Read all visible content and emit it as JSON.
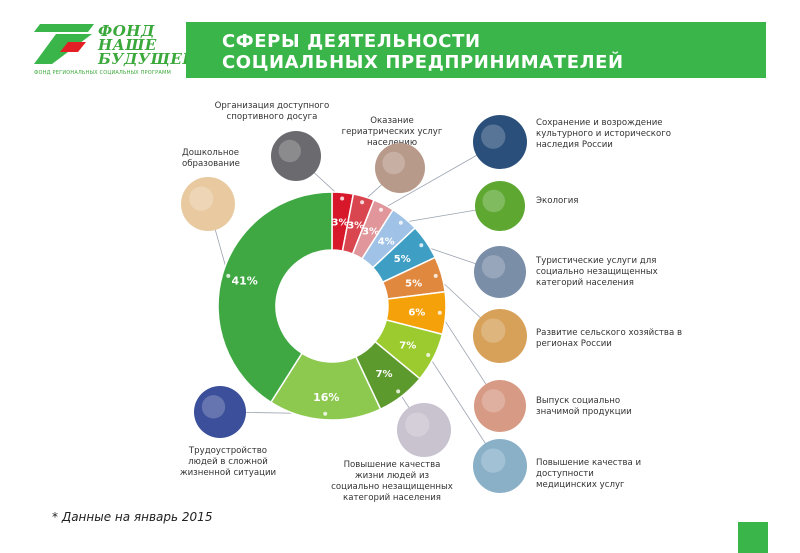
{
  "header": {
    "logo_text": [
      "ФОНД",
      "НАШЕ",
      "БУДУЩЕЕ"
    ],
    "logo_tagline": "ФОНД РЕГИОНАЛЬНЫХ СОЦИАЛЬНЫХ ПРОГРАММ",
    "title_line1": "СФЕРЫ ДЕЯТЕЛЬНОСТИ",
    "title_line2": "СОЦИАЛЬНЫХ ПРЕДПРИНИМАТЕЛЕЙ",
    "accent_color": "#3ab54a"
  },
  "footnote": "* Данные на январь 2015",
  "chart_data": {
    "type": "pie",
    "style": "donut",
    "values": [
      3,
      3,
      3,
      4,
      5,
      5,
      6,
      7,
      7,
      16,
      41
    ],
    "value_labels": [
      "3%",
      "3%",
      "3%",
      "4%",
      "5%",
      "5%",
      "6%",
      "7%",
      "7%",
      "16%",
      "41%"
    ],
    "categories": [
      "Организация доступного спортивного досуга",
      "Оказание гериатрических услуг населению",
      "Сохранение и возрождение культурного и исторического наследия России",
      "Экология",
      "Туристические услуги для социально незащищенных категорий населения",
      "Развитие сельского хозяйства в регионах России",
      "Выпуск социально значимой продукции",
      "Повышение качества и доступности медицинских услуг",
      "Повышение качества жизни людей из социально незащищенных категорий населения",
      "Трудоустройство людей в сложной жизненной ситуации",
      "Дошкольное образование"
    ],
    "colors": [
      "#d7182a",
      "#d9464f",
      "#e0969a",
      "#9fc2e6",
      "#3e9ec3",
      "#e0883e",
      "#f5a10a",
      "#9ccb2f",
      "#5d9a2e",
      "#8dc84f",
      "#3fa843"
    ],
    "photo_colors": [
      "#6b6a6e",
      "#b89a8a",
      "#2a4f7a",
      "#5ea832",
      "#7a8ea8",
      "#d7a15a",
      "#d79a84",
      "#8ab0c8",
      "#c9c2cf",
      "#3b4f9a",
      "#e8c9a0"
    ],
    "legend": "callouts"
  }
}
